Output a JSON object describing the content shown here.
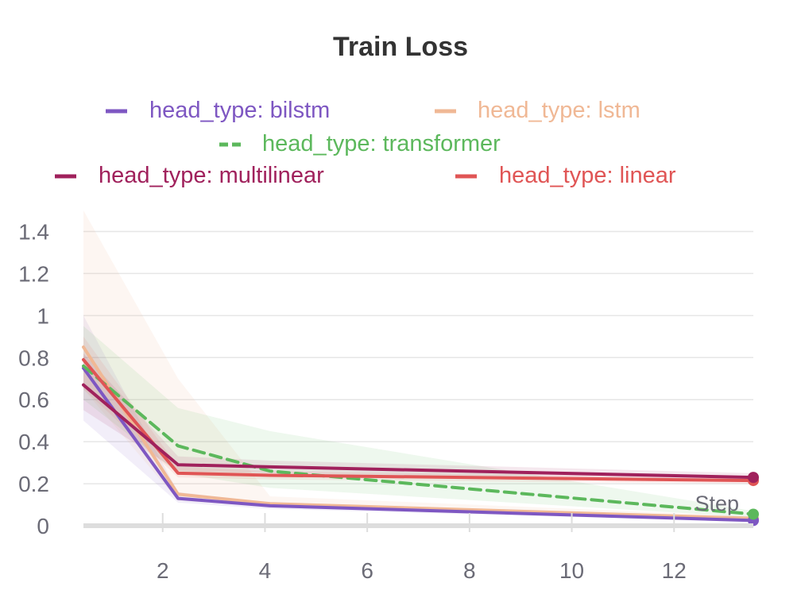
{
  "chart_data": {
    "type": "line",
    "title": "Train Loss",
    "xlabel": "Step",
    "ylabel": "",
    "xlim": [
      0.45,
      13.55
    ],
    "ylim": [
      0,
      1.5
    ],
    "xticks": [
      2,
      4,
      6,
      8,
      10,
      12
    ],
    "yticks": [
      0,
      0.2,
      0.4,
      0.6,
      0.8,
      1,
      1.2,
      1.4
    ],
    "ytick_labels": [
      "0",
      "0.2",
      "0.4",
      "0.6",
      "0.8",
      "1",
      "1.2",
      "1.4"
    ],
    "grid": true,
    "legend_position": "top",
    "x": [
      0.45,
      2.3,
      4.1,
      13.55
    ],
    "series": [
      {
        "name": "head_type: bilstm",
        "color": "#7e57c2",
        "dash": "solid",
        "values": [
          0.75,
          0.13,
          0.095,
          0.025
        ],
        "band_low": [
          0.5,
          0.11,
          0.08,
          0.02
        ],
        "band_high": [
          1.0,
          0.16,
          0.11,
          0.03
        ]
      },
      {
        "name": "head_type: lstm",
        "color": "#f0b895",
        "dash": "solid",
        "values": [
          0.85,
          0.15,
          0.105,
          0.035
        ],
        "band_low": [
          0.65,
          0.12,
          0.09,
          0.025
        ],
        "band_high": [
          1.5,
          0.7,
          0.14,
          0.045
        ]
      },
      {
        "name": "head_type: transformer",
        "color": "#5cb85c",
        "dash": "dashed",
        "values": [
          0.76,
          0.38,
          0.26,
          0.055
        ],
        "band_low": [
          0.6,
          0.25,
          0.18,
          0.04
        ],
        "band_high": [
          0.95,
          0.56,
          0.45,
          0.07
        ]
      },
      {
        "name": "head_type: multilinear",
        "color": "#a0215c",
        "dash": "solid",
        "values": [
          0.67,
          0.29,
          0.28,
          0.23
        ],
        "band_low": [
          0.55,
          0.26,
          0.25,
          0.21
        ],
        "band_high": [
          0.82,
          0.33,
          0.31,
          0.25
        ]
      },
      {
        "name": "head_type: linear",
        "color": "#e05555",
        "dash": "solid",
        "values": [
          0.79,
          0.25,
          0.24,
          0.215
        ],
        "band_low": [
          0.65,
          0.23,
          0.22,
          0.2
        ],
        "band_high": [
          0.9,
          0.28,
          0.26,
          0.23
        ]
      }
    ]
  }
}
